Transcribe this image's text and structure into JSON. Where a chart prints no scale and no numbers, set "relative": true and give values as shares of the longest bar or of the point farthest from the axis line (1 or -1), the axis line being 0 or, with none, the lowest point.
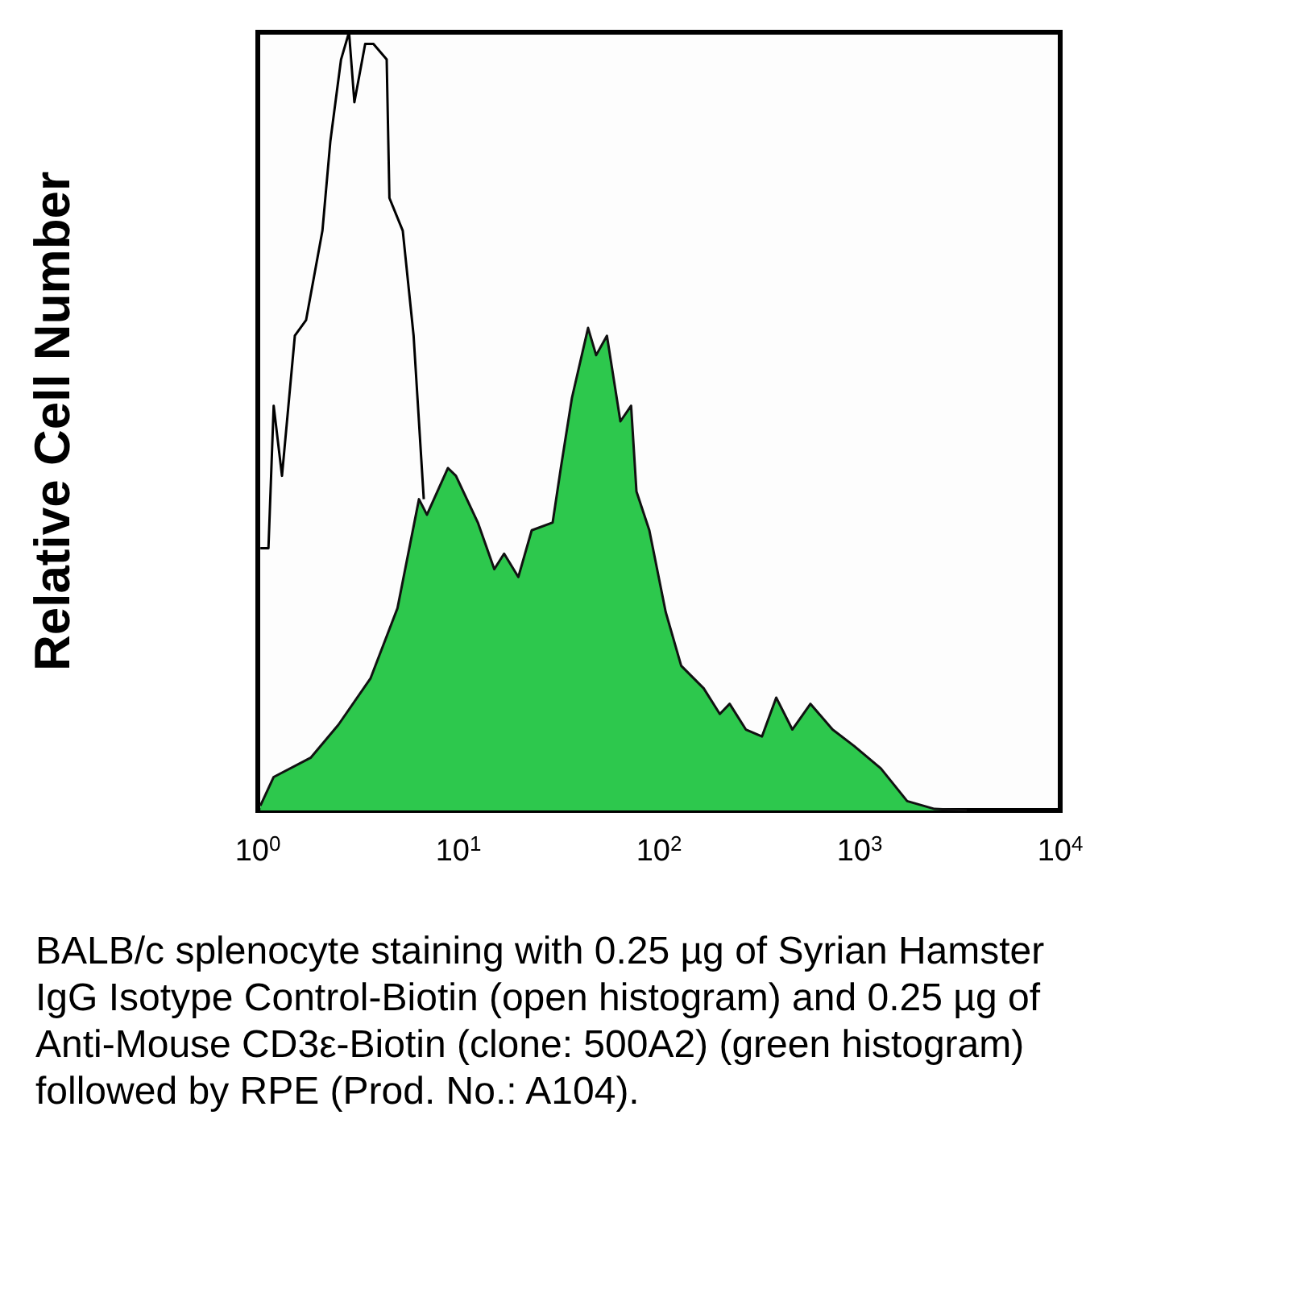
{
  "chart_data": {
    "type": "area",
    "relative": true,
    "log": "x",
    "xlim": [
      1,
      10000
    ],
    "xticks": [
      {
        "value": 1,
        "label": "10$^{0}$"
      },
      {
        "value": 10,
        "label": "10$^{1}$"
      },
      {
        "value": 100,
        "label": "10$^{2}$"
      },
      {
        "value": 1000,
        "label": "10$^{3}$"
      },
      {
        "value": 10000,
        "label": "10$^{4}$"
      }
    ],
    "ylabel": "Relative Cell Number",
    "grid": false,
    "series": [
      {
        "type": "line",
        "color": "#000000",
        "x": [
          1.03,
          1.13,
          1.2,
          1.32,
          1.53,
          1.74,
          2.1,
          2.3,
          2.6,
          2.85,
          3.03,
          3.43,
          3.77,
          4.39,
          4.53,
          5.28,
          5.98,
          6.72
        ],
        "values": [
          0.337,
          0.337,
          0.52,
          0.43,
          0.61,
          0.63,
          0.745,
          0.86,
          0.965,
          1,
          0.91,
          0.985,
          0.985,
          0.965,
          0.787,
          0.745,
          0.61,
          0.4
        ]
      },
      {
        "color": "#2dc84d",
        "x": [
          1.03,
          1.2,
          1.84,
          2.52,
          3.65,
          4.97,
          6.36,
          6.97,
          8.87,
          9.72,
          12.5,
          15.1,
          16.9,
          19.9,
          23.2,
          29.5,
          32.4,
          36.8,
          44.3,
          48.6,
          55,
          64.2,
          72.6,
          77.2,
          89.5,
          108,
          129,
          167,
          201,
          225,
          271,
          326,
          384,
          462,
          569,
          733,
          938,
          1277,
          1726,
          2363,
          3420
        ],
        "values": [
          0.006,
          0.043,
          0.068,
          0.11,
          0.17,
          0.26,
          0.4,
          0.38,
          0.44,
          0.43,
          0.37,
          0.31,
          0.33,
          0.3,
          0.36,
          0.37,
          0.44,
          0.53,
          0.62,
          0.585,
          0.61,
          0.5,
          0.52,
          0.41,
          0.36,
          0.255,
          0.186,
          0.157,
          0.124,
          0.137,
          0.104,
          0.095,
          0.145,
          0.104,
          0.137,
          0.104,
          0.083,
          0.054,
          0.012,
          0.002,
          0
        ]
      }
    ],
    "annotations": [
      "BALB/c splenocyte staining with 0.25 µg of Syrian Hamster IgG Isotype Control-Biotin (open histogram) and 0.25 µg of Anti-Mouse CD3ε-Biotin (clone: 500A2) (green histogram) followed by RPE (Prod. No.: A104)."
    ]
  }
}
